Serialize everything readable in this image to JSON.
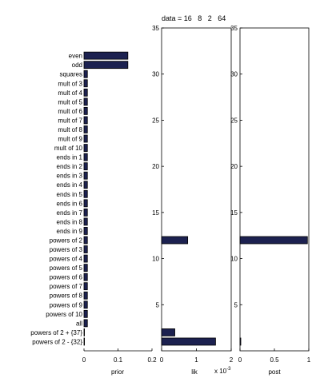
{
  "chart_data": [
    {
      "type": "bar",
      "orientation": "horizontal",
      "title": "",
      "xlabel": "prior",
      "xlim": [
        0,
        0.2
      ],
      "xticks": [
        "0",
        "0.1",
        "0.2"
      ],
      "categories": [
        "even",
        "odd",
        "squares",
        "mult of 3",
        "mult of 4",
        "mult of 5",
        "mult of 6",
        "mult of 7",
        "mult of 8",
        "mult of 9",
        "mult of 10",
        "ends in 1",
        "ends in 2",
        "ends in 3",
        "ends in 4",
        "ends in 5",
        "ends in 6",
        "ends in 7",
        "ends in 8",
        "ends in 9",
        "powers of 2",
        "powers of 3",
        "powers of 4",
        "powers of 5",
        "powers of 6",
        "powers of 7",
        "powers of 8",
        "powers of 9",
        "powers of 10",
        "all",
        "powers of 2 + {37}",
        "powers of 2 - {32}"
      ],
      "values": [
        0.129,
        0.129,
        0.01,
        0.01,
        0.01,
        0.01,
        0.01,
        0.01,
        0.01,
        0.01,
        0.01,
        0.01,
        0.01,
        0.01,
        0.01,
        0.01,
        0.01,
        0.01,
        0.01,
        0.01,
        0.01,
        0.01,
        0.01,
        0.01,
        0.01,
        0.01,
        0.01,
        0.01,
        0.01,
        0.01,
        0.001,
        0.001
      ],
      "grid": false
    },
    {
      "type": "bar",
      "orientation": "horizontal",
      "title": "data = 16   8   2   64",
      "xlabel": "lik",
      "x_multiplier": "x 10",
      "x_multiplier_exponent": "-3",
      "xlim": [
        0,
        2
      ],
      "xticks": [
        "0",
        "1",
        "2"
      ],
      "ylim": [
        0,
        35
      ],
      "yticks": [
        "5",
        "10",
        "15",
        "20",
        "25",
        "30",
        "35"
      ],
      "rows": [
        12,
        2,
        1
      ],
      "values": [
        0.75,
        0.38,
        1.55
      ],
      "grid": false
    },
    {
      "type": "bar",
      "orientation": "horizontal",
      "title": "",
      "xlabel": "post",
      "xlim": [
        0,
        1
      ],
      "xticks": [
        "0",
        "0.5",
        "1"
      ],
      "ylim": [
        0,
        35
      ],
      "yticks": [
        "5",
        "10",
        "15",
        "20",
        "25",
        "30",
        "35"
      ],
      "rows": [
        12,
        1
      ],
      "values": [
        0.98,
        0.01
      ],
      "grid": false
    }
  ]
}
